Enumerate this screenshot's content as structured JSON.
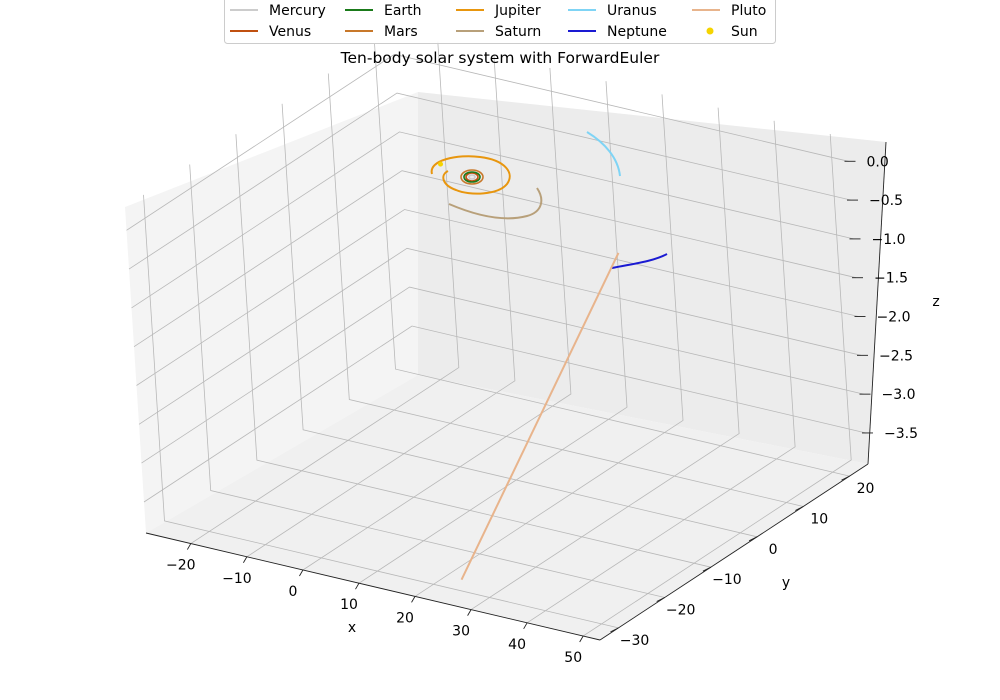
{
  "chart_data": {
    "type": "line",
    "projection": "3d",
    "title": "Ten-body solar system with ForwardEuler",
    "xlabel": "x",
    "ylabel": "y",
    "zlabel": "z",
    "xlim": [
      -28,
      53
    ],
    "ylim": [
      -34,
      24
    ],
    "zlim": [
      -3.9,
      0.3
    ],
    "xticks": [
      "−20",
      "−10",
      "0",
      "10",
      "20",
      "30",
      "40",
      "50"
    ],
    "yticks": [
      "−30",
      "−20",
      "−10",
      "0",
      "10",
      "20"
    ],
    "zticks": [
      "0.0",
      "−0.5",
      "−1.0",
      "−1.5",
      "−2.0",
      "−2.5",
      "−3.0",
      "−3.5"
    ],
    "grid": true,
    "legend_position": "top-center",
    "legend_columns": 5,
    "series": [
      {
        "name": "Mercury",
        "color": "#cccccc",
        "kind": "orbit"
      },
      {
        "name": "Venus",
        "color": "#c05010",
        "kind": "orbit"
      },
      {
        "name": "Earth",
        "color": "#1a7a1a",
        "kind": "orbit"
      },
      {
        "name": "Mars",
        "color": "#c8782a",
        "kind": "orbit"
      },
      {
        "name": "Jupiter",
        "color": "#e8960e",
        "kind": "orbit"
      },
      {
        "name": "Saturn",
        "color": "#b8a07a",
        "kind": "orbit"
      },
      {
        "name": "Uranus",
        "color": "#7fd4f5",
        "kind": "arc"
      },
      {
        "name": "Neptune",
        "color": "#1a1ad2",
        "kind": "arc"
      },
      {
        "name": "Pluto",
        "color": "#e8b48c",
        "kind": "line",
        "x": [
          12,
          26
        ],
        "y": [
          22,
          -31
        ],
        "z": [
          -1.8,
          -3.7
        ]
      },
      {
        "name": "Sun",
        "color": "#f5d400",
        "kind": "point",
        "x": [
          0
        ],
        "y": [
          0
        ],
        "z": [
          0
        ]
      }
    ]
  }
}
